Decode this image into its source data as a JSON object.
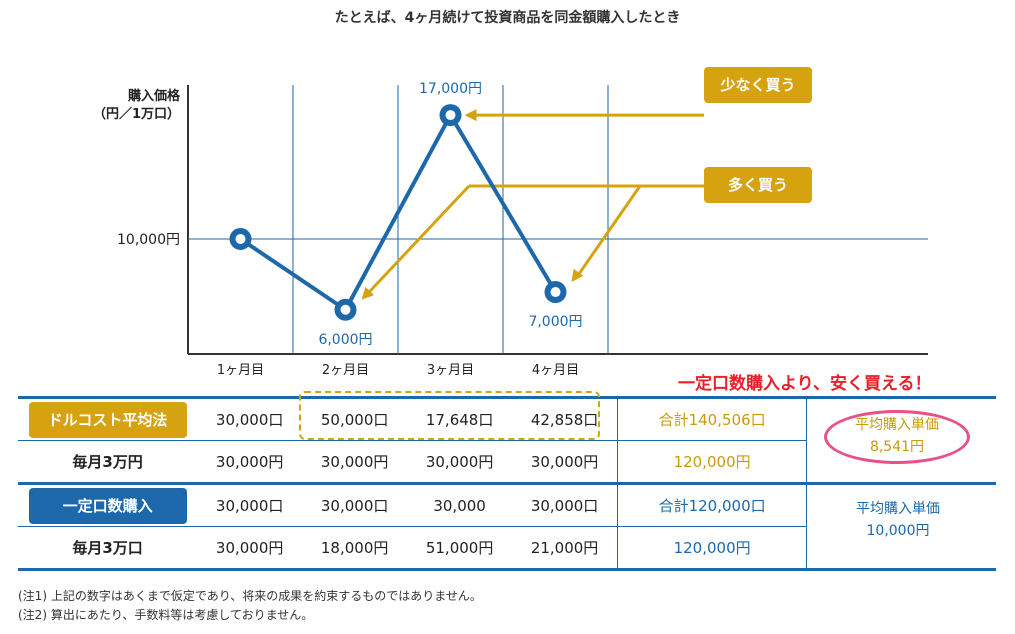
{
  "title": "たとえば、4ヶ月続けて投資商品を同金額購入したとき",
  "chart_data": {
    "type": "line",
    "ylabel": [
      "購入価格",
      "（円／1万口）"
    ],
    "categories": [
      "1ヶ月目",
      "2ヶ月目",
      "3ヶ月目",
      "4ヶ月目"
    ],
    "values": [
      10000,
      6000,
      17000,
      7000
    ],
    "point_labels": [
      "",
      "6,000円",
      "17,000円",
      "7,000円"
    ],
    "y_tick_values": [
      10000
    ],
    "y_tick_labels": [
      "10,000円"
    ],
    "ylim": [
      3500,
      18700
    ],
    "colors": {
      "line": "#1c68ab",
      "callout": "#d6a20f",
      "highlight": "#e8202a"
    }
  },
  "callouts": {
    "buy_less": "少なく買う",
    "buy_more": "多く買う"
  },
  "headline": "一定口数購入より、安く買える！",
  "table": {
    "dca": {
      "name": "ドルコスト平均法",
      "sub": "毎月3万円",
      "units": [
        "30,000口",
        "50,000口",
        "17,648口",
        "42,858口"
      ],
      "amounts": [
        "30,000円",
        "30,000円",
        "30,000円",
        "30,000円"
      ],
      "total_units": "合計140,506口",
      "total_amount": "120,000円",
      "avg_label": "平均購入単価",
      "avg_value": "8,541円"
    },
    "fixed": {
      "name": "一定口数購入",
      "sub": "毎月3万口",
      "units": [
        "30,000口",
        "30,000口",
        "30,000",
        "30,000口"
      ],
      "amounts": [
        "30,000円",
        "18,000円",
        "51,000円",
        "21,000円"
      ],
      "total_units": "合計120,000口",
      "total_amount": "120,000円",
      "avg_label": "平均購入単価",
      "avg_value": "10,000円"
    }
  },
  "notes": [
    "(注1) 上記の数字はあくまで仮定であり、将来の成果を約束するものではありません。",
    "(注2) 算出にあたり、手数料等は考慮しておりません。"
  ]
}
